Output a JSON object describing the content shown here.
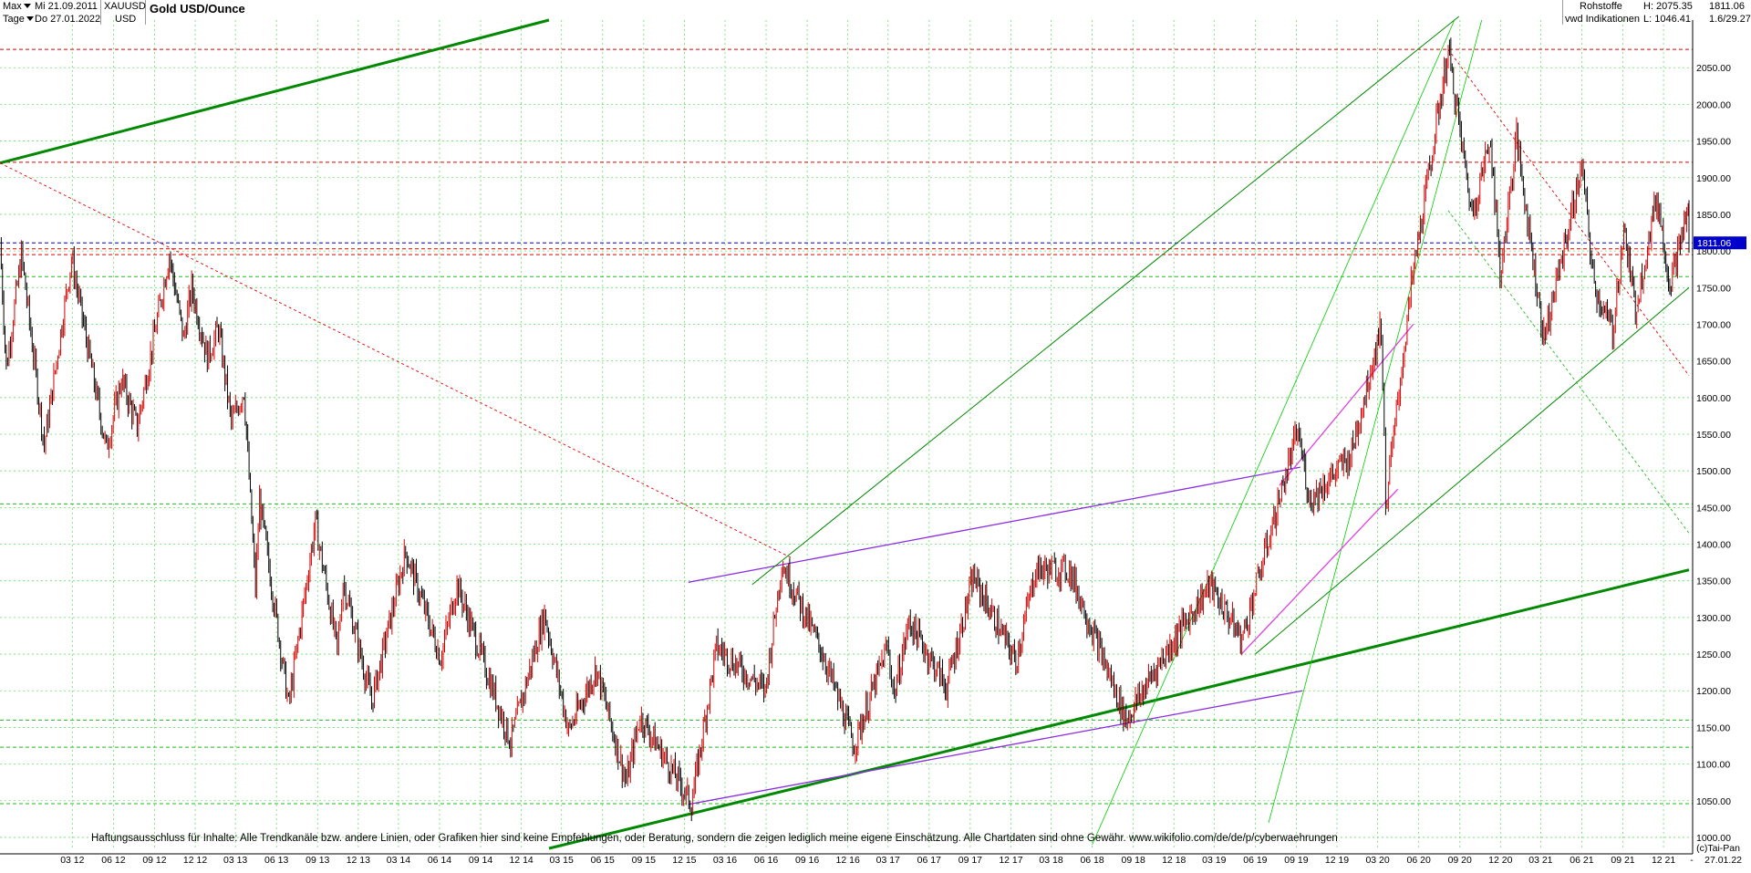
{
  "header": {
    "period_select": "Max",
    "interval_select": "Tage",
    "date_from": "Mi 21.09.2011",
    "date_to": "Do 27.01.2022",
    "symbol": "XAUUSD",
    "currency": "USD",
    "title": "Gold USD/Ounce",
    "category": "Rohstoffe",
    "source": "vwd Indikationen",
    "high": "H: 2075.35",
    "low": "L: 1046.41",
    "last": "1811.06",
    "ratio": "1.6/29.27"
  },
  "footer": {
    "disclaimer": "Haftungsausschluss für Inhalte: Alle Trendkanäle bzw. andere Linien, oder Grafiken hier sind keine Empfehlungen, oder Beratung, sondern die zeigen lediglich meine eigene Einschätzung. Alle Chartdaten sind ohne Gewähr.  www.wikifolio.com/de/de/p/cyberwaehrungen",
    "copyright": "(c)Tai-Pan",
    "date_end": "27.01.22",
    "dash": "-"
  },
  "colors": {
    "up": "#d40000",
    "down": "#000000",
    "grid": "#66e066",
    "support": "#008800",
    "trend_light": "#00cc00",
    "purple": "#8a2be2",
    "magenta": "#e040e0",
    "red_dotted": "#e00000",
    "last_badge": "#0000cc"
  },
  "chart_data": {
    "type": "candlestick",
    "title": "Gold USD/Ounce",
    "last_price": 1811.06,
    "high": 2075.35,
    "low": 1046.41,
    "ylim": [
      985,
      2115
    ],
    "x_range": [
      "2011-09-21",
      "2022-01-27"
    ],
    "y_ticks": [
      1000,
      1050,
      1100,
      1150,
      1200,
      1250,
      1300,
      1350,
      1400,
      1450,
      1500,
      1550,
      1600,
      1650,
      1700,
      1750,
      1800,
      1850,
      1900,
      1950,
      2000,
      2050
    ],
    "x_ticks": [
      {
        "date": "2012-03",
        "label": "03 12"
      },
      {
        "date": "2012-06",
        "label": "06 12"
      },
      {
        "date": "2012-09",
        "label": "09 12"
      },
      {
        "date": "2012-12",
        "label": "12 12"
      },
      {
        "date": "2013-03",
        "label": "03 13"
      },
      {
        "date": "2013-06",
        "label": "06 13"
      },
      {
        "date": "2013-09",
        "label": "09 13"
      },
      {
        "date": "2013-12",
        "label": "12 13"
      },
      {
        "date": "2014-03",
        "label": "03 14"
      },
      {
        "date": "2014-06",
        "label": "06 14"
      },
      {
        "date": "2014-09",
        "label": "09 14"
      },
      {
        "date": "2014-12",
        "label": "12 14"
      },
      {
        "date": "2015-03",
        "label": "03 15"
      },
      {
        "date": "2015-06",
        "label": "06 15"
      },
      {
        "date": "2015-09",
        "label": "09 15"
      },
      {
        "date": "2015-12",
        "label": "12 15"
      },
      {
        "date": "2016-03",
        "label": "03 16"
      },
      {
        "date": "2016-06",
        "label": "06 16"
      },
      {
        "date": "2016-09",
        "label": "09 16"
      },
      {
        "date": "2016-12",
        "label": "12 16"
      },
      {
        "date": "2017-03",
        "label": "03 17"
      },
      {
        "date": "2017-06",
        "label": "06 17"
      },
      {
        "date": "2017-09",
        "label": "09 17"
      },
      {
        "date": "2017-12",
        "label": "12 17"
      },
      {
        "date": "2018-03",
        "label": "03 18"
      },
      {
        "date": "2018-06",
        "label": "06 18"
      },
      {
        "date": "2018-09",
        "label": "09 18"
      },
      {
        "date": "2018-12",
        "label": "12 18"
      },
      {
        "date": "2019-03",
        "label": "03 19"
      },
      {
        "date": "2019-06",
        "label": "06 19"
      },
      {
        "date": "2019-09",
        "label": "09 19"
      },
      {
        "date": "2019-12",
        "label": "12 19"
      },
      {
        "date": "2020-03",
        "label": "03 20"
      },
      {
        "date": "2020-06",
        "label": "06 20"
      },
      {
        "date": "2020-09",
        "label": "09 20"
      },
      {
        "date": "2020-12",
        "label": "12 20"
      },
      {
        "date": "2021-03",
        "label": "03 21"
      },
      {
        "date": "2021-06",
        "label": "06 21"
      },
      {
        "date": "2021-09",
        "label": "09 21"
      },
      {
        "date": "2021-12",
        "label": "12 21"
      }
    ],
    "price_path": [
      [
        "2011-09-21",
        1811
      ],
      [
        "2011-10-05",
        1640
      ],
      [
        "2011-11-08",
        1795
      ],
      [
        "2011-12-29",
        1535
      ],
      [
        "2012-02-28",
        1790
      ],
      [
        "2012-05-16",
        1530
      ],
      [
        "2012-06-19",
        1625
      ],
      [
        "2012-07-24",
        1560
      ],
      [
        "2012-10-04",
        1795
      ],
      [
        "2012-11-05",
        1680
      ],
      [
        "2012-11-23",
        1750
      ],
      [
        "2012-12-28",
        1655
      ],
      [
        "2013-01-22",
        1695
      ],
      [
        "2013-02-20",
        1565
      ],
      [
        "2013-03-20",
        1610
      ],
      [
        "2013-04-15",
        1340
      ],
      [
        "2013-04-24",
        1460
      ],
      [
        "2013-06-28",
        1180
      ],
      [
        "2013-08-27",
        1430
      ],
      [
        "2013-10-15",
        1255
      ],
      [
        "2013-10-28",
        1350
      ],
      [
        "2013-12-31",
        1185
      ],
      [
        "2014-03-17",
        1390
      ],
      [
        "2014-06-03",
        1245
      ],
      [
        "2014-07-10",
        1345
      ],
      [
        "2014-11-07",
        1130
      ],
      [
        "2015-01-22",
        1305
      ],
      [
        "2015-03-17",
        1145
      ],
      [
        "2015-05-18",
        1230
      ],
      [
        "2015-07-24",
        1075
      ],
      [
        "2015-08-24",
        1165
      ],
      [
        "2015-12-17",
        1046
      ],
      [
        "2016-02-11",
        1260
      ],
      [
        "2016-05-30",
        1200
      ],
      [
        "2016-07-06",
        1375
      ],
      [
        "2016-10-06",
        1250
      ],
      [
        "2016-12-15",
        1125
      ],
      [
        "2017-02-27",
        1260
      ],
      [
        "2017-03-15",
        1195
      ],
      [
        "2017-04-17",
        1295
      ],
      [
        "2017-07-10",
        1205
      ],
      [
        "2017-09-08",
        1355
      ],
      [
        "2017-12-12",
        1240
      ],
      [
        "2018-01-25",
        1365
      ],
      [
        "2018-04-11",
        1365
      ],
      [
        "2018-08-16",
        1160
      ],
      [
        "2018-10-26",
        1235
      ],
      [
        "2019-02-20",
        1345
      ],
      [
        "2019-05-02",
        1270
      ],
      [
        "2019-09-04",
        1555
      ],
      [
        "2019-10-01",
        1460
      ],
      [
        "2019-12-31",
        1520
      ],
      [
        "2020-03-09",
        1700
      ],
      [
        "2020-03-19",
        1455
      ],
      [
        "2020-05-18",
        1765
      ],
      [
        "2020-08-06",
        2075
      ],
      [
        "2020-09-28",
        1850
      ],
      [
        "2020-11-09",
        1955
      ],
      [
        "2020-11-30",
        1765
      ],
      [
        "2021-01-06",
        1955
      ],
      [
        "2021-03-08",
        1680
      ],
      [
        "2021-06-01",
        1915
      ],
      [
        "2021-06-29",
        1750
      ],
      [
        "2021-08-09",
        1690
      ],
      [
        "2021-09-03",
        1830
      ],
      [
        "2021-09-29",
        1720
      ],
      [
        "2021-11-16",
        1875
      ],
      [
        "2021-12-15",
        1755
      ],
      [
        "2022-01-25",
        1855
      ],
      [
        "2022-01-27",
        1811
      ]
    ],
    "horizontal_levels": [
      {
        "value": 2075,
        "style": "red-dashed"
      },
      {
        "value": 1921,
        "style": "red-dashed"
      },
      {
        "value": 1811.06,
        "style": "blue-dashed"
      },
      {
        "value": 1803,
        "style": "red-dashed"
      },
      {
        "value": 1795,
        "style": "red-dashed"
      },
      {
        "value": 1765,
        "style": "green-dashed"
      },
      {
        "value": 1455,
        "style": "green-dashed"
      },
      {
        "value": 1160,
        "style": "green-dashed"
      },
      {
        "value": 1123,
        "style": "green-dashed"
      },
      {
        "value": 1046,
        "style": "green-dashed"
      }
    ]
  }
}
